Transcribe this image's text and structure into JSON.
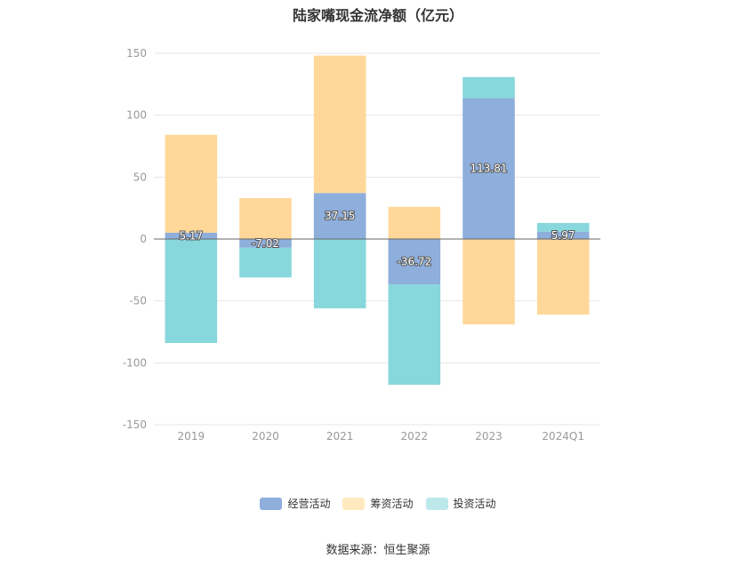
{
  "title": "陆家嘴现金流净额（亿元）",
  "source": "数据来源：恒生聚源",
  "chart_data": {
    "type": "bar",
    "stacked": true,
    "title": "陆家嘴现金流净额（亿元）",
    "categories": [
      "2019",
      "2020",
      "2021",
      "2022",
      "2023",
      "2024Q1"
    ],
    "ylim": [
      -150,
      150
    ],
    "yticks": [
      150,
      100,
      50,
      0,
      -50,
      -100,
      -150
    ],
    "grid": true,
    "legend_position": "bottom",
    "series": [
      {
        "name": "经营活动",
        "color": "#8eaedb",
        "values": [
          5.17,
          -7.02,
          37.15,
          -36.72,
          113.81,
          5.97
        ],
        "labels": [
          "5.17",
          "-7.02",
          "37.15",
          "-36.72",
          "113.81",
          "5.97"
        ]
      },
      {
        "name": "筹资活动",
        "color": "#ffd899",
        "values": [
          79,
          33,
          111,
          26,
          -69,
          -61
        ]
      },
      {
        "name": "投资活动",
        "color": "#87d7dc",
        "values": [
          -84,
          -24,
          -56,
          -81,
          17,
          7
        ]
      }
    ]
  }
}
